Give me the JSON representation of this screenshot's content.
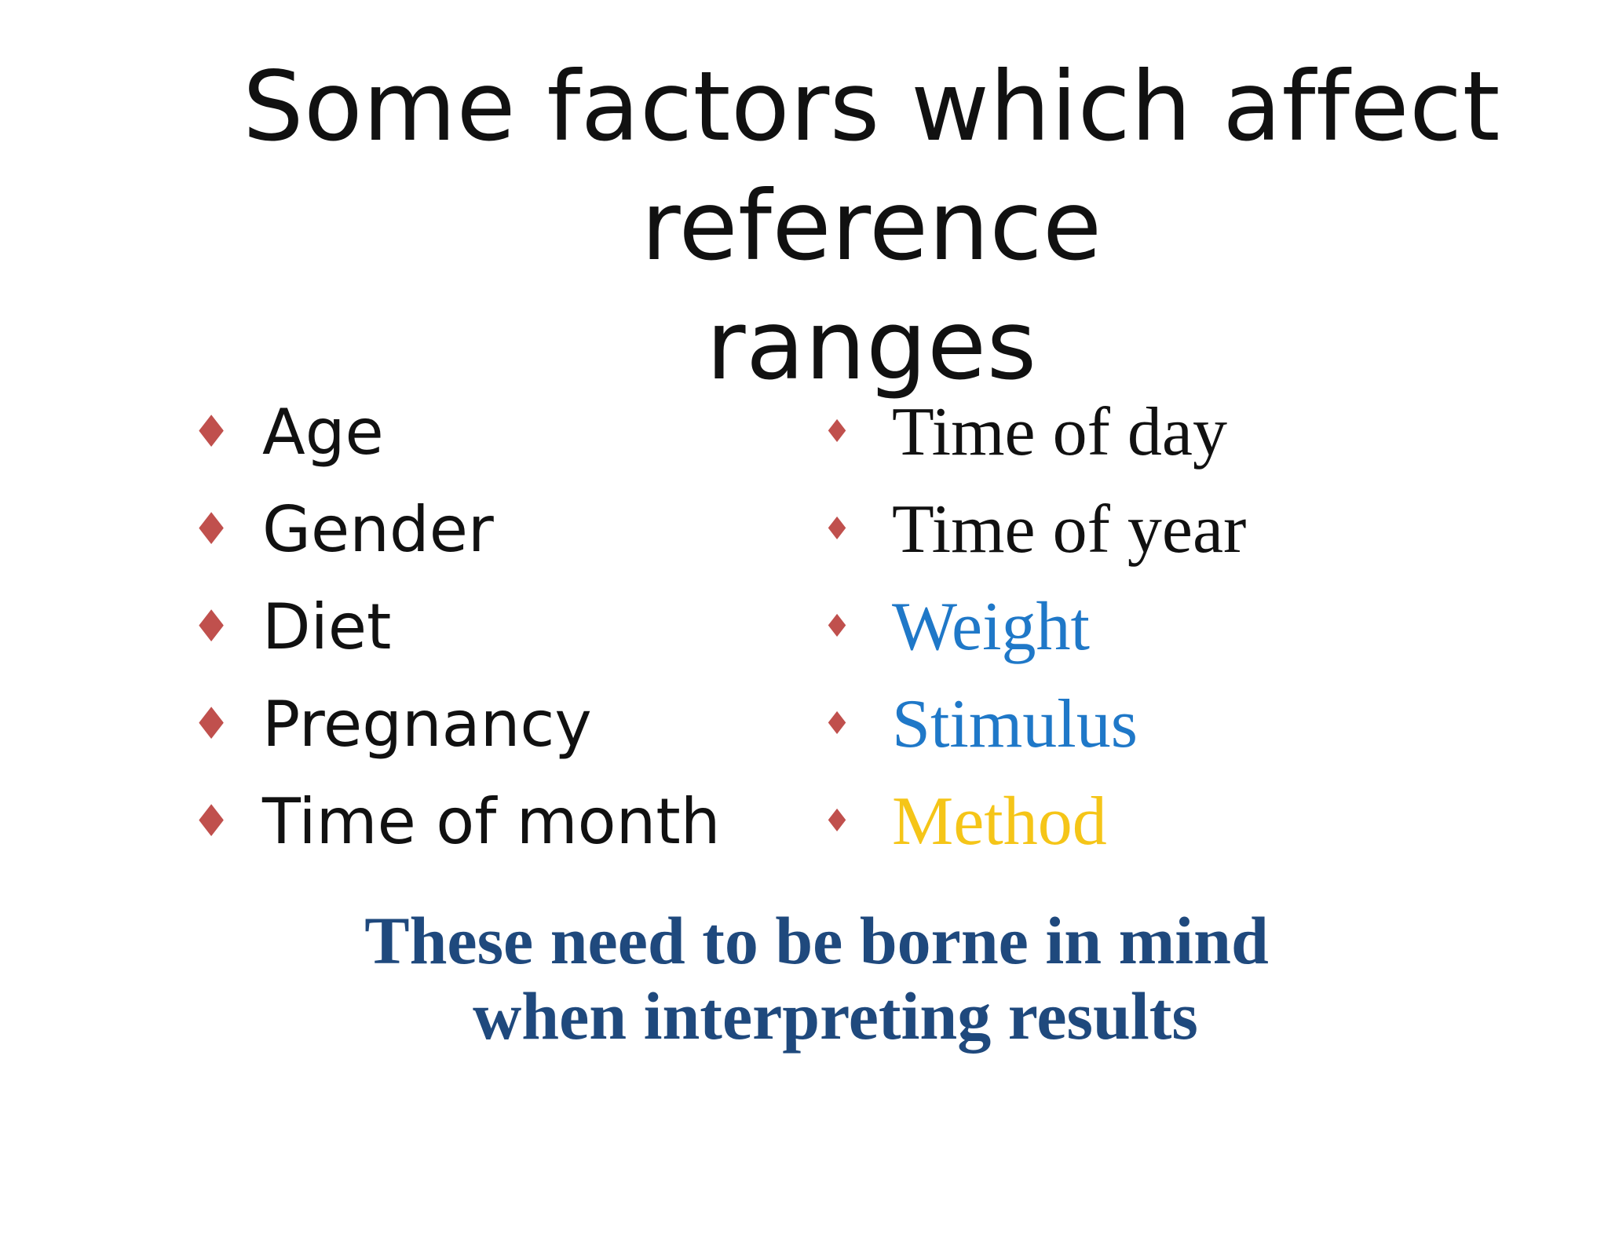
{
  "title": {
    "line1": "Some factors which affect reference",
    "line2": "ranges"
  },
  "bullet_glyph": "♦",
  "colors": {
    "bullet": "#c0504d",
    "text_default": "#111111",
    "text_blue": "#1f78c8",
    "text_yellow": "#f5c518",
    "note": "#1f497d"
  },
  "left_list": [
    {
      "label": "Age"
    },
    {
      "label": "Gender"
    },
    {
      "label": "Diet"
    },
    {
      "label": "Pregnancy"
    },
    {
      "label": "Time of month"
    }
  ],
  "right_list": [
    {
      "label": "Time of day",
      "color": "#111111"
    },
    {
      "label": "Time of year",
      "color": "#111111"
    },
    {
      "label": "Weight",
      "color": "#1f78c8"
    },
    {
      "label": "Stimulus",
      "color": "#1f78c8"
    },
    {
      "label": "Method",
      "color": "#f5c518"
    }
  ],
  "note": {
    "line1": "These need to be borne in mind",
    "line2": "when interpreting results"
  }
}
